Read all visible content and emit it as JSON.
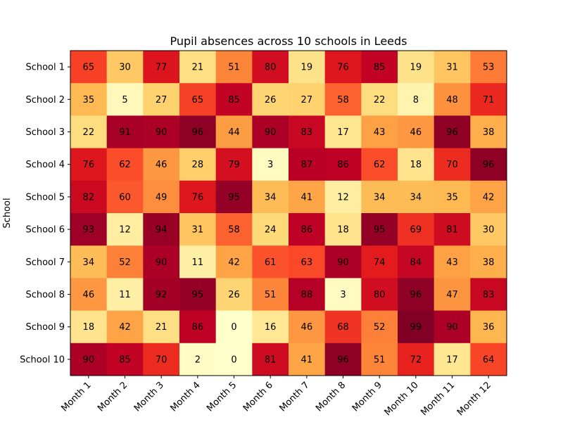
{
  "chart_data": {
    "type": "heatmap",
    "title": "Pupil absences across 10 schools in Leeds",
    "xlabel": "",
    "ylabel": "School",
    "columns": [
      "Month 1",
      "Month 2",
      "Month 3",
      "Month 4",
      "Month 5",
      "Month 6",
      "Month 7",
      "Month 8",
      "Month 9",
      "Month 10",
      "Month 11",
      "Month 12"
    ],
    "rows": [
      "School 1",
      "School 2",
      "School 3",
      "School 4",
      "School 5",
      "School 6",
      "School 7",
      "School 8",
      "School 9",
      "School 10"
    ],
    "values": [
      [
        65,
        30,
        77,
        21,
        51,
        80,
        19,
        76,
        85,
        19,
        31,
        53
      ],
      [
        35,
        5,
        27,
        65,
        85,
        26,
        27,
        58,
        22,
        8,
        48,
        71
      ],
      [
        22,
        91,
        90,
        96,
        44,
        90,
        83,
        17,
        43,
        46,
        96,
        38
      ],
      [
        76,
        62,
        46,
        28,
        79,
        3,
        87,
        86,
        62,
        18,
        70,
        96
      ],
      [
        82,
        60,
        49,
        76,
        95,
        34,
        41,
        12,
        34,
        34,
        35,
        42
      ],
      [
        93,
        12,
        94,
        31,
        58,
        24,
        86,
        18,
        95,
        69,
        81,
        30
      ],
      [
        34,
        52,
        90,
        11,
        42,
        61,
        63,
        90,
        74,
        84,
        43,
        38
      ],
      [
        46,
        11,
        92,
        95,
        26,
        51,
        88,
        3,
        80,
        96,
        47,
        83
      ],
      [
        18,
        42,
        21,
        86,
        0,
        16,
        46,
        68,
        52,
        99,
        90,
        36
      ],
      [
        90,
        85,
        70,
        2,
        0,
        81,
        41,
        96,
        51,
        72,
        17,
        64
      ]
    ],
    "colormap": "YlOrRd",
    "vmin": 0,
    "vmax": 99,
    "grid": false,
    "xtick_rotation": 45
  }
}
